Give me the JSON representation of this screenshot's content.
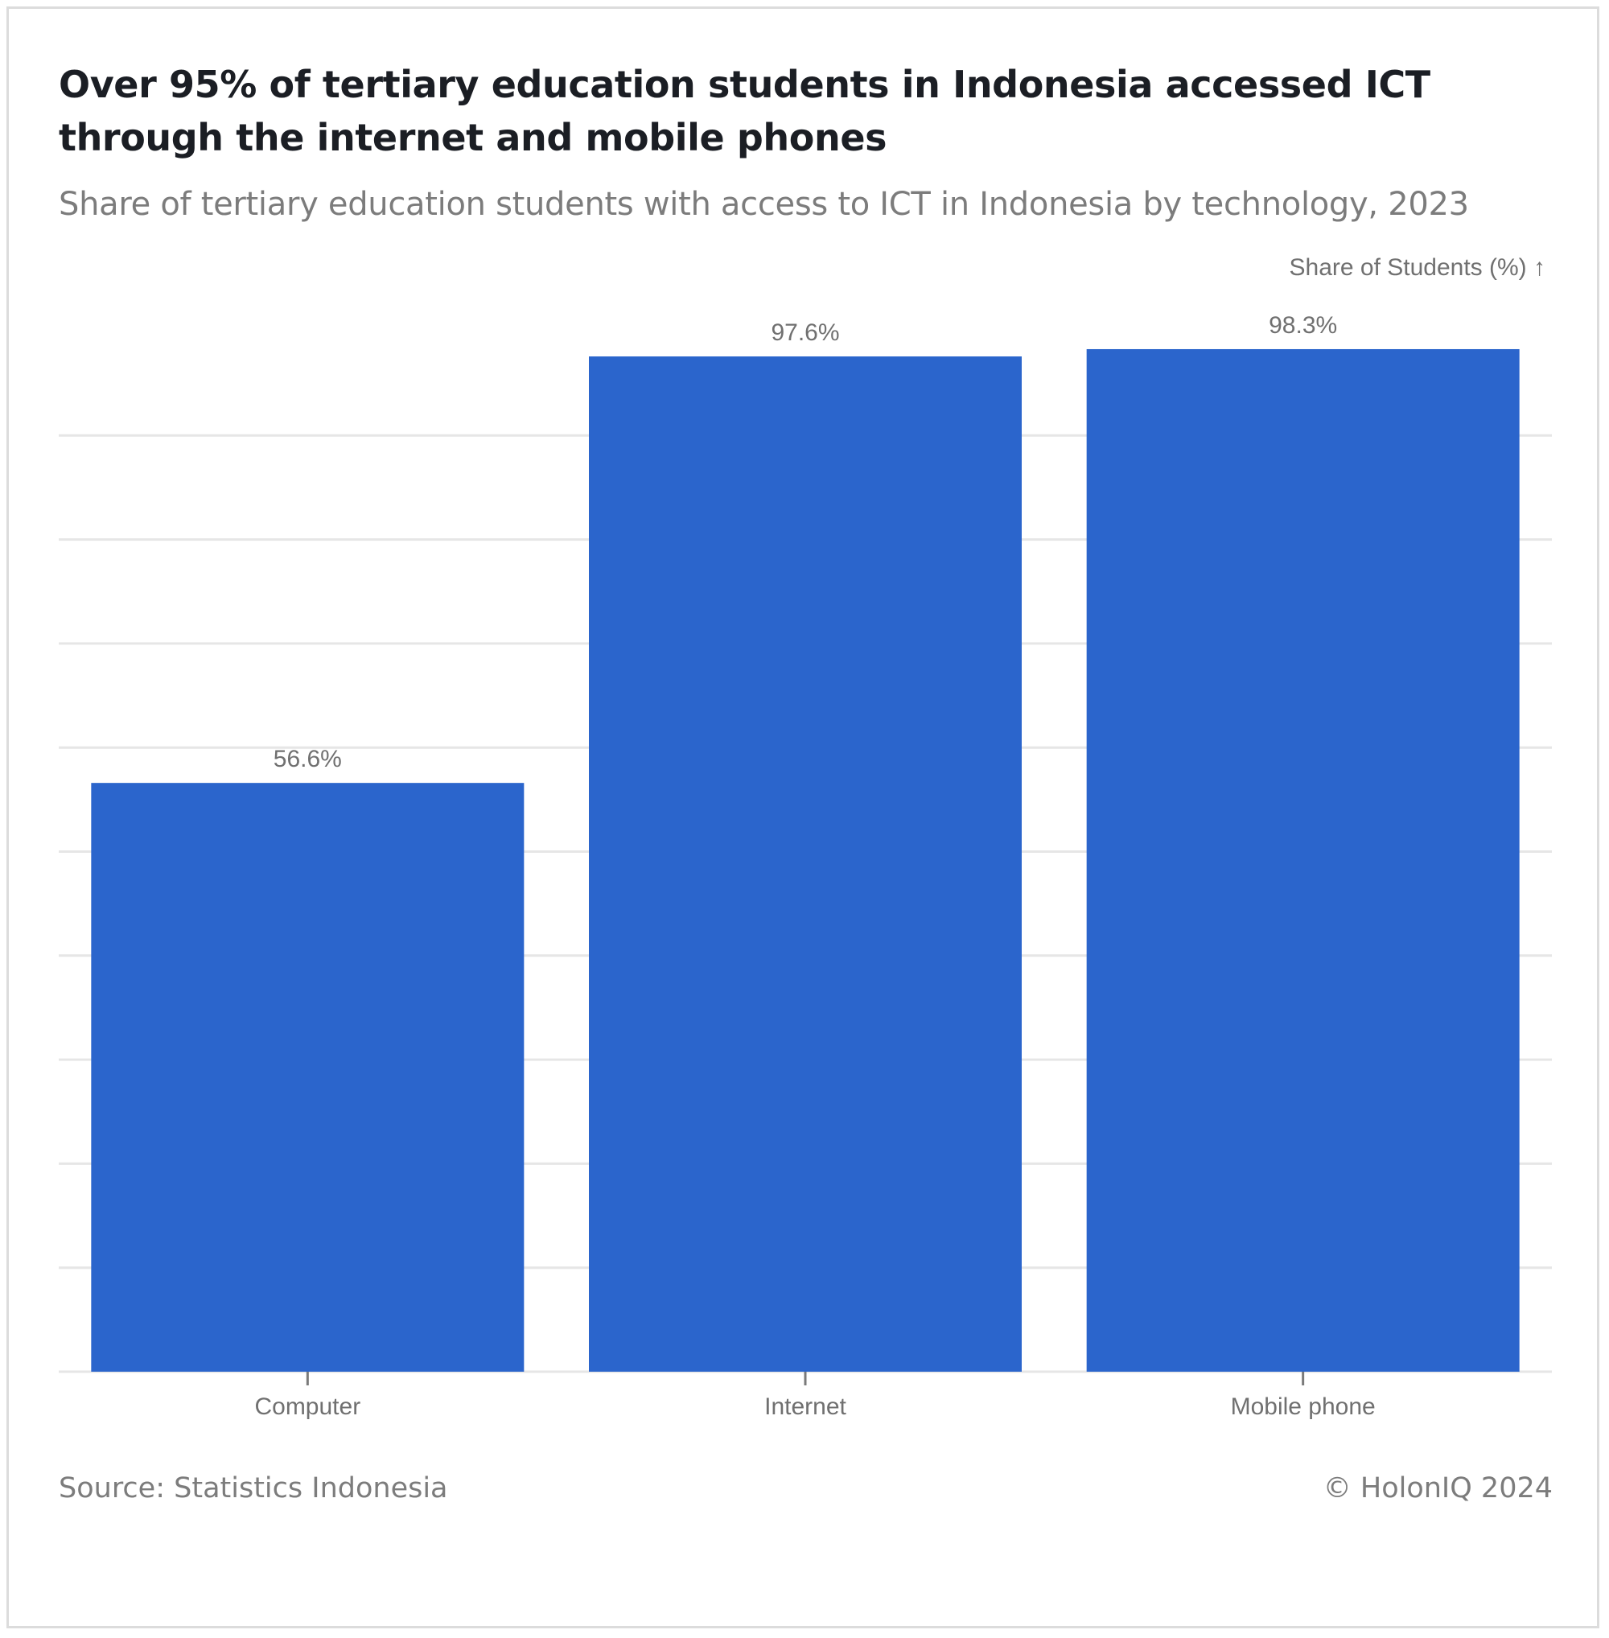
{
  "header": {
    "title": "Over 95% of tertiary education students in Indonesia accessed ICT through the internet and mobile phones",
    "subtitle": "Share of tertiary education students with access to ICT in Indonesia by technology, 2023"
  },
  "footer": {
    "source": "Source: Statistics Indonesia",
    "copyright": "© HolonIQ 2024"
  },
  "colors": {
    "bar": "#2b65cc",
    "gridline": "#e6e6e6",
    "axis_text": "#707070"
  },
  "chart_data": {
    "type": "bar",
    "categories": [
      "Computer",
      "Internet",
      "Mobile phone"
    ],
    "values": [
      56.6,
      97.6,
      98.3
    ],
    "value_labels": [
      "56.6%",
      "97.6%",
      "98.3%"
    ],
    "ylabel": "Share of Students (%) ↑",
    "xlabel": "",
    "ylim": [
      0,
      90
    ],
    "gridline_step": 10,
    "y_tick_labels_visible": false,
    "grid": true,
    "legend": "none"
  }
}
